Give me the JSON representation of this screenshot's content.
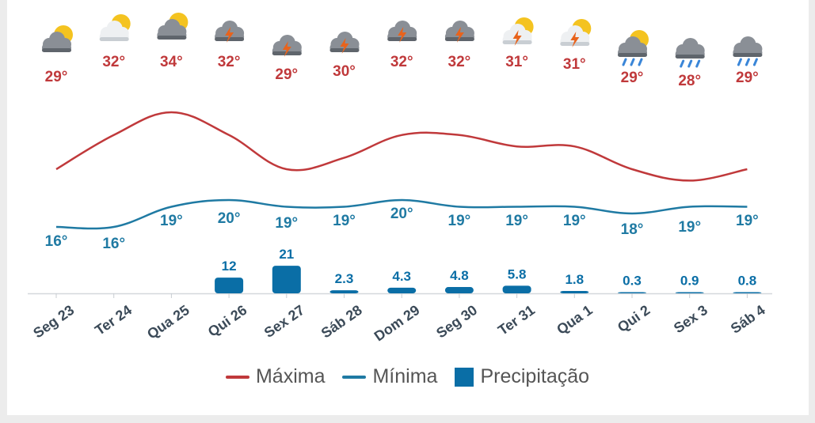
{
  "colors": {
    "max": "#c0393b",
    "min": "#1f7aa3",
    "precip": "#0a6ea6",
    "axis_text": "#3b4a58",
    "icon_cloud": "#8a8f96",
    "icon_sun": "#f4c320",
    "icon_bolt": "#e8631c",
    "icon_rain": "#3a86d8"
  },
  "chart_data": {
    "type": "line",
    "categories": [
      "Seg 23",
      "Ter 24",
      "Qua 25",
      "Qui 26",
      "Sex 27",
      "Sáb 28",
      "Dom 29",
      "Seg 30",
      "Ter 31",
      "Qua 1",
      "Qui 2",
      "Sex 3",
      "Sáb 4"
    ],
    "series": [
      {
        "name": "Máxima",
        "values": [
          29,
          32,
          34,
          32,
          29,
          30,
          32,
          32,
          31,
          31,
          29,
          28,
          29
        ],
        "labels": [
          "29°",
          "32°",
          "34°",
          "32°",
          "29°",
          "30°",
          "32°",
          "32°",
          "31°",
          "31°",
          "29°",
          "28°",
          "29°"
        ]
      },
      {
        "name": "Mínima",
        "values": [
          16,
          16,
          19,
          20,
          19,
          19,
          20,
          19,
          19,
          19,
          18,
          19,
          19
        ],
        "labels": [
          "16°",
          "16°",
          "19°",
          "20°",
          "19°",
          "19°",
          "20°",
          "19°",
          "19°",
          "19°",
          "18°",
          "19°",
          "19°"
        ]
      },
      {
        "name": "Precipitação",
        "type": "bar",
        "values": [
          0,
          0,
          0,
          12,
          21,
          2.3,
          4.3,
          4.8,
          5.8,
          1.8,
          0.3,
          0.9,
          0.8
        ],
        "labels": [
          "",
          "",
          "",
          "12",
          "21",
          "2.3",
          "4.3",
          "4.8",
          "5.8",
          "1.8",
          "0.3",
          "0.9",
          "0.8"
        ]
      }
    ],
    "icons": [
      "partly-cloudy-icon",
      "sun-behind-cloud-icon",
      "partly-cloudy-icon",
      "thunderstorm-icon",
      "thunderstorm-icon",
      "thunderstorm-icon",
      "thunderstorm-icon",
      "thunderstorm-icon",
      "sun-thunderstorm-icon",
      "sun-thunderstorm-icon",
      "sun-rain-icon",
      "rain-cloud-icon",
      "rain-cloud-icon"
    ],
    "legend": [
      "Máxima",
      "Mínima",
      "Precipitação"
    ],
    "legend_position": "bottom",
    "grid": false
  }
}
